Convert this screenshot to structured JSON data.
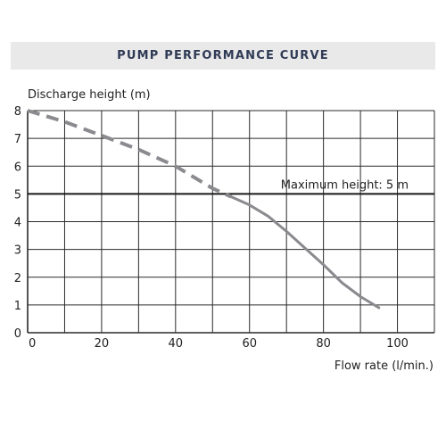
{
  "chart_data": {
    "type": "line",
    "title": "PUMP PERFORMANCE CURVE",
    "xlabel": "Flow rate (l/min.)",
    "ylabel": "Discharge height (m)",
    "xlim": [
      0,
      110
    ],
    "ylim": [
      0,
      8
    ],
    "x_ticks": [
      "0",
      "20",
      "40",
      "60",
      "80",
      "100"
    ],
    "y_ticks": [
      "0",
      "1",
      "2",
      "3",
      "4",
      "5",
      "6",
      "7",
      "8"
    ],
    "grid": true,
    "series": [
      {
        "style": "dashed",
        "color": "#8a8a8f",
        "points": [
          [
            0,
            8
          ],
          [
            10,
            7.6
          ],
          [
            20,
            7.1
          ],
          [
            30,
            6.6
          ],
          [
            40,
            6.0
          ],
          [
            50,
            5.2
          ],
          [
            55,
            4.9
          ]
        ]
      },
      {
        "style": "solid",
        "color": "#8a8a8f",
        "points": [
          [
            55,
            4.9
          ],
          [
            60,
            4.6
          ],
          [
            65,
            4.2
          ],
          [
            70,
            3.65
          ],
          [
            75,
            3.05
          ],
          [
            80,
            2.45
          ],
          [
            85,
            1.8
          ],
          [
            90,
            1.3
          ],
          [
            95,
            0.9
          ]
        ]
      }
    ],
    "reference_line": {
      "y": 5,
      "label": "Maximum height: 5 m",
      "color": "#1a1a1a"
    }
  }
}
